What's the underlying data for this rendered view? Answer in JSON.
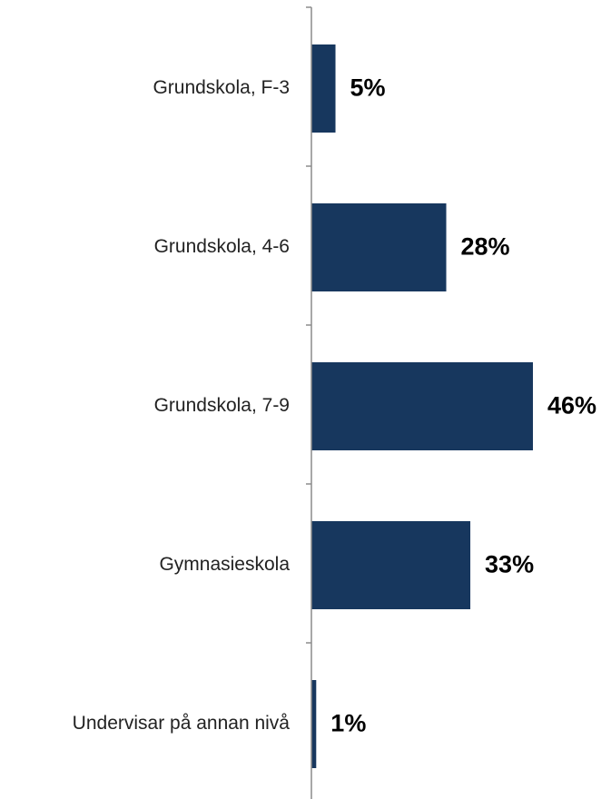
{
  "chart_data": {
    "type": "bar",
    "orientation": "horizontal",
    "categories": [
      "Grundskola, F-3",
      "Grundskola, 4-6",
      "Grundskola, 7-9",
      "Gymnasieskola",
      "Undervisar på annan nivå"
    ],
    "values": [
      5,
      28,
      46,
      33,
      1
    ],
    "value_labels": [
      "5%",
      "28%",
      "46%",
      "33%",
      "1%"
    ],
    "unit": "%",
    "xlim": [
      0,
      50
    ],
    "grid": false,
    "legend": "none",
    "colors": {
      "bar": "#17375e",
      "axis": "#8c8c8c",
      "label": "#222222",
      "value": "#000000"
    }
  }
}
